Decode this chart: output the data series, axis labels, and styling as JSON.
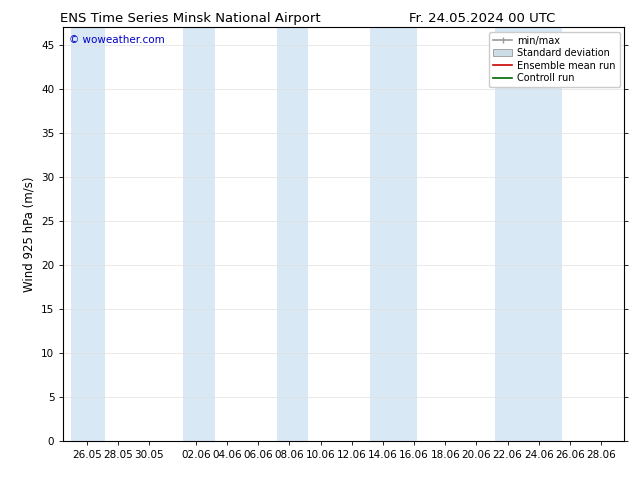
{
  "title_left": "ENS Time Series Minsk National Airport",
  "title_right": "Fr. 24.05.2024 00 UTC",
  "ylabel": "Wind 925 hPa (m/s)",
  "ylim": [
    0,
    47
  ],
  "yticks": [
    0,
    5,
    10,
    15,
    20,
    25,
    30,
    35,
    40,
    45
  ],
  "background_color": "#ffffff",
  "plot_bg_color": "#ffffff",
  "watermark": "© woweather.com",
  "watermark_color": "#0000cc",
  "legend_entries": [
    "min/max",
    "Standard deviation",
    "Ensemble mean run",
    "Controll run"
  ],
  "shaded_band_color": "#d8e8f5",
  "shaded_band_alpha": 1.0,
  "tick_fontsize": 7.5,
  "label_fontsize": 8.5,
  "title_fontsize": 9.5,
  "xtick_positions": [
    2,
    4,
    6,
    9,
    11,
    13,
    15,
    17,
    19,
    21,
    23,
    25,
    27,
    29,
    31,
    33,
    35
  ],
  "xtick_labels": [
    "26.05",
    "28.05",
    "30.05",
    "02.06",
    "04.06",
    "06.06",
    "08.06",
    "10.06",
    "12.06",
    "14.06",
    "16.06",
    "18.06",
    "20.06",
    "22.06",
    "24.06",
    "26.06",
    "28.06"
  ],
  "xlim": [
    0.5,
    36.5
  ],
  "shaded_bands": [
    [
      1.0,
      3.2
    ],
    [
      8.2,
      10.2
    ],
    [
      14.2,
      16.2
    ],
    [
      20.2,
      23.2
    ],
    [
      28.2,
      32.5
    ]
  ]
}
